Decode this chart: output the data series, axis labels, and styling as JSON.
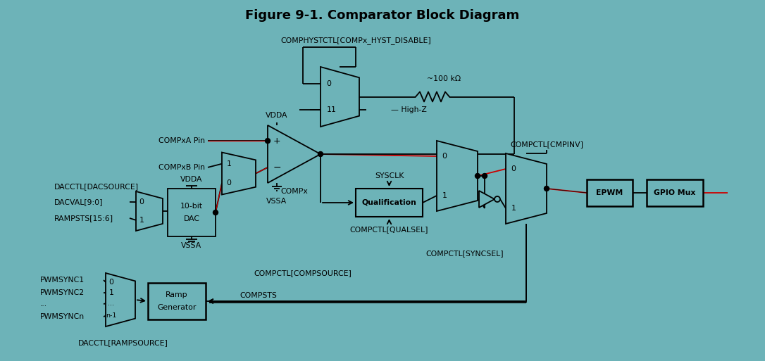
{
  "title": "Figure 9-1. Comparator Block Diagram",
  "bg_color": "#6db3b8",
  "lc": "#000000",
  "rc": "#cc0000",
  "fs": 7.8,
  "fs_bold": 9.5,
  "figsize": [
    10.86,
    5.13
  ],
  "dpi": 100,
  "labels": {
    "comphyst": "COMPHYSTCTL[COMPx_HYST_DISABLE]",
    "res": "~100 kΩ",
    "highz": "High-Z",
    "vdda_comp": "VDDA",
    "vssa_comp": "VSSA",
    "compx": "COMPxA Pin",
    "compxb": "COMPxB Pin",
    "compa_label": "COMPx",
    "dacctl": "DACCTL[DACSOURCE]",
    "dacval": "DACVAL[9:0]",
    "rampsts": "RAMPSTS[15:6]",
    "vdda_dac": "VDDA",
    "vssa_dac": "VSSA",
    "dacbit1": "10-bit",
    "dacbit2": "DAC",
    "compsource": "COMPCTL[COMPSOURCE]",
    "sysclk": "SYSCLK",
    "qual": "Qualification",
    "qualsel": "COMPCTL[QUALSEL]",
    "syncsel": "COMPCTL[SYNCSEL]",
    "cmpinv": "COMPCTL[CMPINV]",
    "epwm": "EPWM",
    "gpio": "GPIO Mux",
    "pwm1": "PWMSYNC1",
    "pwm2": "PWMSYNC2",
    "pwmdots": "...",
    "pwmn": "PWMSYNCn",
    "ramp1": "Ramp",
    "ramp2": "Generator",
    "compsts": "COMPSTS",
    "rampsource": "DACCTL[RAMPSOURCE]"
  }
}
